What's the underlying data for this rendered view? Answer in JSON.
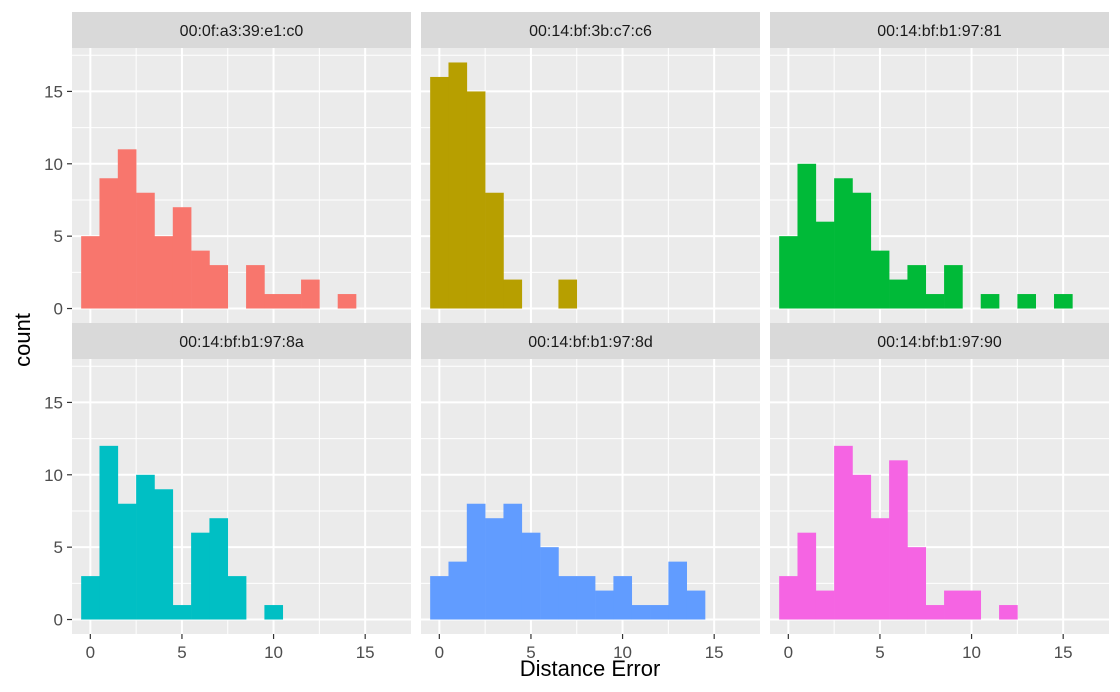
{
  "chart_data": {
    "type": "histogram",
    "layout": "facets 2x3",
    "xlabel": "Distance Error",
    "ylabel": "count",
    "x_range": [
      -1,
      17.5
    ],
    "y_range": [
      -1,
      18
    ],
    "x_ticks": [
      0,
      5,
      10,
      15
    ],
    "y_ticks": [
      0,
      5,
      10,
      15
    ],
    "bin_width": 1,
    "bin_starts": [
      -0.5,
      0.5,
      1.5,
      2.5,
      3.5,
      4.5,
      5.5,
      6.5,
      7.5,
      8.5,
      9.5,
      10.5,
      11.5,
      12.5,
      13.5,
      14.5,
      15.5
    ],
    "grid": true,
    "panels": [
      {
        "title": "00:0f:a3:39:e1:c0",
        "color": "#F8766D",
        "counts": [
          5,
          9,
          11,
          8,
          5,
          7,
          4,
          3,
          0,
          3,
          1,
          1,
          2,
          0,
          1,
          0,
          0
        ]
      },
      {
        "title": "00:14:bf:3b:c7:c6",
        "color": "#B79F00",
        "counts": [
          16,
          17,
          15,
          8,
          2,
          0,
          0,
          2,
          0,
          0,
          0,
          0,
          0,
          0,
          0,
          0,
          0
        ]
      },
      {
        "title": "00:14:bf:b1:97:81",
        "color": "#00BA38",
        "counts": [
          5,
          10,
          6,
          9,
          8,
          4,
          2,
          3,
          1,
          3,
          0,
          1,
          0,
          1,
          0,
          1,
          0
        ]
      },
      {
        "title": "00:14:bf:b1:97:8a",
        "color": "#00BFC4",
        "counts": [
          3,
          12,
          8,
          10,
          9,
          1,
          6,
          7,
          3,
          0,
          1,
          0,
          0,
          0,
          0,
          0,
          0
        ]
      },
      {
        "title": "00:14:bf:b1:97:8d",
        "color": "#619CFF",
        "counts": [
          3,
          4,
          8,
          7,
          8,
          6,
          5,
          3,
          3,
          2,
          3,
          1,
          1,
          4,
          2,
          0,
          0
        ]
      },
      {
        "title": "00:14:bf:b1:97:90",
        "color": "#F564E3",
        "counts": [
          3,
          6,
          2,
          12,
          10,
          7,
          11,
          5,
          1,
          2,
          2,
          0,
          1,
          0,
          0,
          0,
          0
        ]
      }
    ]
  }
}
